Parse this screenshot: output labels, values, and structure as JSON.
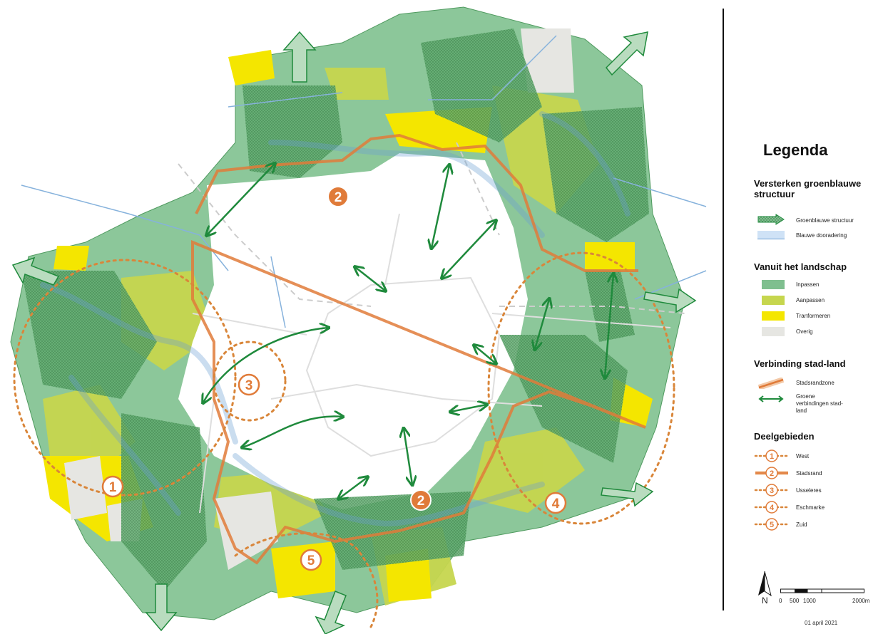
{
  "legend": {
    "title": "Legenda",
    "sections": {
      "structuur": "Versterken groenblauwe structuur",
      "landschap": "Vanuit het landschap",
      "verbinding": "Verbinding stad-land",
      "deelgebieden": "Deelgebieden"
    },
    "items": {
      "groenblauw": "Groenblauwe structuur",
      "blauw": "Blauwe dooradering",
      "inpassen": "Inpassen",
      "aanpassen": "Aanpassen",
      "transformeren": "Tranformeren",
      "overig": "Overig",
      "stadsrandzone": "Stadsrandzone",
      "groene_verbindingen": "Groene verbindingen stad-land"
    },
    "deelgebieden": [
      {
        "num": "1",
        "label": "West"
      },
      {
        "num": "2",
        "label": "Stadsrand"
      },
      {
        "num": "3",
        "label": "Usseleres"
      },
      {
        "num": "4",
        "label": "Eschmarke"
      },
      {
        "num": "5",
        "label": "Zuid"
      }
    ]
  },
  "map_labels": [
    "1",
    "2",
    "2",
    "3",
    "4",
    "5"
  ],
  "scale": {
    "north": "N",
    "ticks": [
      "0",
      "500",
      "1000",
      "2000m"
    ]
  },
  "date": "01 april 2021",
  "colors": {
    "inpassen": "#7fbf8f",
    "aanpassen": "#c4d24f",
    "transformeren": "#f2e500",
    "overig": "#e4e4e0",
    "water": "#8ab8e0",
    "stadsrand": "#e07b39",
    "arrow_green": "#1f8a3c"
  }
}
